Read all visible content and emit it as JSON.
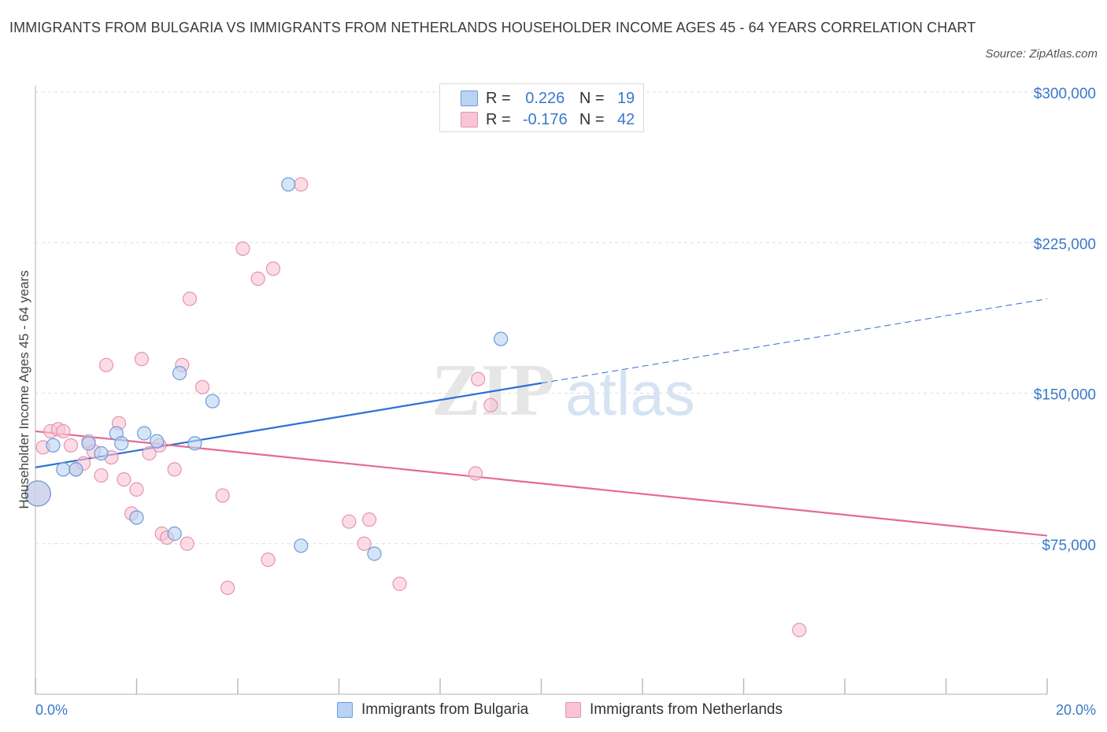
{
  "title": "IMMIGRANTS FROM BULGARIA VS IMMIGRANTS FROM NETHERLANDS HOUSEHOLDER INCOME AGES 45 - 64 YEARS CORRELATION CHART",
  "source": "Source: ZipAtlas.com",
  "watermark": {
    "zip": "ZIP",
    "atlas": "atlas"
  },
  "legend": {
    "bulgaria": {
      "r_label": "R =",
      "r_value": "0.226",
      "n_label": "N =",
      "n_value": "19"
    },
    "netherlands": {
      "r_label": "R =",
      "r_value": "-0.176",
      "n_label": "N =",
      "n_value": "42"
    }
  },
  "colors": {
    "bulgaria_fill": "#b9d3f4",
    "bulgaria_stroke": "#6d9ad8",
    "bulgaria_line": "#2d6fd0",
    "netherlands_fill": "#f9c4d4",
    "netherlands_stroke": "#e693b0",
    "netherlands_line": "#e46a95",
    "axis_text": "#3a78c9",
    "grid": "#dddddd"
  },
  "chart_data": {
    "type": "scatter",
    "title": "IMMIGRANTS FROM BULGARIA VS IMMIGRANTS FROM NETHERLANDS HOUSEHOLDER INCOME AGES 45 - 64 YEARS CORRELATION CHART",
    "xlabel": "",
    "ylabel": "Householder Income Ages 45 - 64 years",
    "xlim": [
      0,
      20
    ],
    "ylim": [
      0,
      300000
    ],
    "x_tick_labels": [
      "0.0%",
      "20.0%"
    ],
    "y_ticks": [
      75000,
      150000,
      225000,
      300000
    ],
    "y_tick_labels": [
      "$75,000",
      "$150,000",
      "$225,000",
      "$300,000"
    ],
    "grid": true,
    "legend_position": "top-center",
    "series": [
      {
        "name": "Immigrants from Bulgaria",
        "points": [
          {
            "x": 0.05,
            "y": 100000,
            "size": "large"
          },
          {
            "x": 0.35,
            "y": 124000
          },
          {
            "x": 0.55,
            "y": 112000
          },
          {
            "x": 0.8,
            "y": 112000
          },
          {
            "x": 1.05,
            "y": 125000
          },
          {
            "x": 1.3,
            "y": 120000
          },
          {
            "x": 1.6,
            "y": 130000
          },
          {
            "x": 1.7,
            "y": 125000
          },
          {
            "x": 2.0,
            "y": 88000
          },
          {
            "x": 2.15,
            "y": 130000
          },
          {
            "x": 2.4,
            "y": 126000
          },
          {
            "x": 2.75,
            "y": 80000
          },
          {
            "x": 2.85,
            "y": 160000
          },
          {
            "x": 3.15,
            "y": 125000
          },
          {
            "x": 3.5,
            "y": 146000
          },
          {
            "x": 5.0,
            "y": 254000
          },
          {
            "x": 5.25,
            "y": 74000
          },
          {
            "x": 6.7,
            "y": 70000
          },
          {
            "x": 9.2,
            "y": 177000
          }
        ],
        "trend": {
          "x": [
            0,
            10
          ],
          "y": [
            113000,
            155000
          ],
          "extended_to": {
            "x": 20,
            "y": 197000
          }
        }
      },
      {
        "name": "Immigrants from Netherlands",
        "points": [
          {
            "x": 0.05,
            "y": 100000,
            "size": "large"
          },
          {
            "x": 0.15,
            "y": 123000
          },
          {
            "x": 0.3,
            "y": 131000
          },
          {
            "x": 0.45,
            "y": 132000
          },
          {
            "x": 0.55,
            "y": 131000
          },
          {
            "x": 0.7,
            "y": 124000
          },
          {
            "x": 0.8,
            "y": 112000
          },
          {
            "x": 0.95,
            "y": 115000
          },
          {
            "x": 1.05,
            "y": 126000
          },
          {
            "x": 1.15,
            "y": 121000
          },
          {
            "x": 1.3,
            "y": 109000
          },
          {
            "x": 1.4,
            "y": 164000
          },
          {
            "x": 1.5,
            "y": 118000
          },
          {
            "x": 1.65,
            "y": 135000
          },
          {
            "x": 1.75,
            "y": 107000
          },
          {
            "x": 1.9,
            "y": 90000
          },
          {
            "x": 2.0,
            "y": 102000
          },
          {
            "x": 2.1,
            "y": 167000
          },
          {
            "x": 2.25,
            "y": 120000
          },
          {
            "x": 2.45,
            "y": 124000
          },
          {
            "x": 2.5,
            "y": 80000
          },
          {
            "x": 2.6,
            "y": 78000
          },
          {
            "x": 2.75,
            "y": 112000
          },
          {
            "x": 2.9,
            "y": 164000
          },
          {
            "x": 3.0,
            "y": 75000
          },
          {
            "x": 3.05,
            "y": 197000
          },
          {
            "x": 3.3,
            "y": 153000
          },
          {
            "x": 3.7,
            "y": 99000
          },
          {
            "x": 3.8,
            "y": 53000
          },
          {
            "x": 4.1,
            "y": 222000
          },
          {
            "x": 4.4,
            "y": 207000
          },
          {
            "x": 4.6,
            "y": 67000
          },
          {
            "x": 4.7,
            "y": 212000
          },
          {
            "x": 5.25,
            "y": 254000
          },
          {
            "x": 6.2,
            "y": 86000
          },
          {
            "x": 6.5,
            "y": 75000
          },
          {
            "x": 6.6,
            "y": 87000
          },
          {
            "x": 7.2,
            "y": 55000
          },
          {
            "x": 8.7,
            "y": 110000
          },
          {
            "x": 8.75,
            "y": 157000
          },
          {
            "x": 9.0,
            "y": 144000
          },
          {
            "x": 15.1,
            "y": 32000
          }
        ],
        "trend": {
          "x": [
            0,
            20
          ],
          "y": [
            131000,
            79000
          ]
        }
      }
    ]
  },
  "bottom_legend": [
    "Immigrants from Bulgaria",
    "Immigrants from Netherlands"
  ]
}
